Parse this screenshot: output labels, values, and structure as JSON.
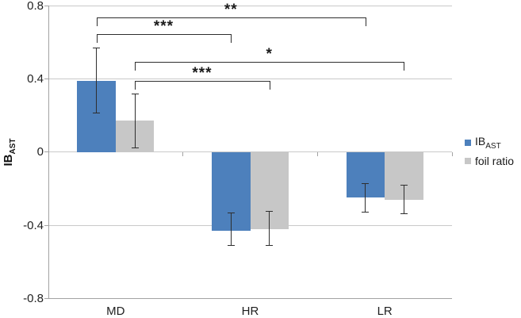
{
  "chart_data": {
    "type": "bar",
    "title": "",
    "ylabel": "IB",
    "ylabel_sub": "AST",
    "xlabel": "",
    "ylim": [
      -0.8,
      0.8
    ],
    "yticks": [
      0.8,
      0.4,
      0,
      -0.4,
      -0.8
    ],
    "ytick_labels": [
      "0.8",
      "0.4",
      "0",
      "-0.4",
      "-0.8"
    ],
    "categories": [
      "MD",
      "HR",
      "LR"
    ],
    "grid": true,
    "legend_position": "right",
    "series": [
      {
        "name": "IB",
        "name_sub": "AST",
        "color": "#4d80bc",
        "values": [
          0.39,
          -0.43,
          -0.25
        ],
        "error_low": [
          0.21,
          -0.51,
          -0.33
        ],
        "error_high": [
          0.57,
          -0.33,
          -0.17
        ]
      },
      {
        "name": "foil ratio",
        "name_sub": "",
        "color": "#c7c7c7",
        "values": [
          0.17,
          -0.42,
          -0.26
        ],
        "error_low": [
          0.02,
          -0.51,
          -0.34
        ],
        "error_high": [
          0.32,
          -0.32,
          -0.18
        ]
      }
    ],
    "significance_brackets": [
      {
        "label": "**",
        "series_index": 0,
        "from_index": 0,
        "to_index": 2,
        "from_category": "MD",
        "to_category": "LR",
        "y_value": 0.735
      },
      {
        "label": "***",
        "series_index": 0,
        "from_index": 0,
        "to_index": 1,
        "from_category": "MD",
        "to_category": "HR",
        "y_value": 0.643
      },
      {
        "label": "*",
        "series_index": 1,
        "from_index": 0,
        "to_index": 2,
        "from_category": "MD",
        "to_category": "LR",
        "y_value": 0.491
      },
      {
        "label": "***",
        "series_index": 1,
        "from_index": 0,
        "to_index": 1,
        "from_category": "MD",
        "to_category": "HR",
        "y_value": 0.389
      }
    ],
    "colors": {
      "bar_blue": "#4d80bc",
      "bar_gray": "#c7c7c7",
      "gridline": "#c9c9c9",
      "axis": "#a3a3a3",
      "error_and_bracket": "#2e2e2e",
      "text": "#1f1f1f"
    }
  }
}
